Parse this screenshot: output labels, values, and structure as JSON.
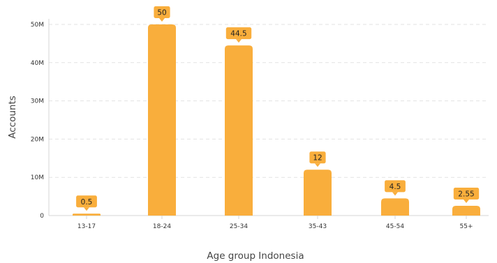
{
  "chart_data": {
    "type": "bar",
    "categories": [
      "13-17",
      "18-24",
      "25-34",
      "35-43",
      "45-54",
      "55+"
    ],
    "values": [
      0.5,
      50,
      44.5,
      12,
      4.5,
      2.55
    ],
    "data_labels": [
      "0.5",
      "50",
      "44.5",
      "12",
      "4.5",
      "2.55"
    ],
    "xlabel": "Age group Indonesia",
    "ylabel": "Accounts",
    "ylim": [
      0,
      50
    ],
    "yticks": [
      0,
      10,
      20,
      30,
      40,
      50
    ],
    "ytick_labels": [
      "0",
      "10M",
      "20M",
      "30M",
      "40M",
      "50M"
    ],
    "grid": true,
    "legend": "none",
    "colors": {
      "bar": "#F9AE3C",
      "label_box": "#F9AE3C",
      "grid": "#E2E2E2",
      "axis": "#D6D6D6"
    }
  }
}
